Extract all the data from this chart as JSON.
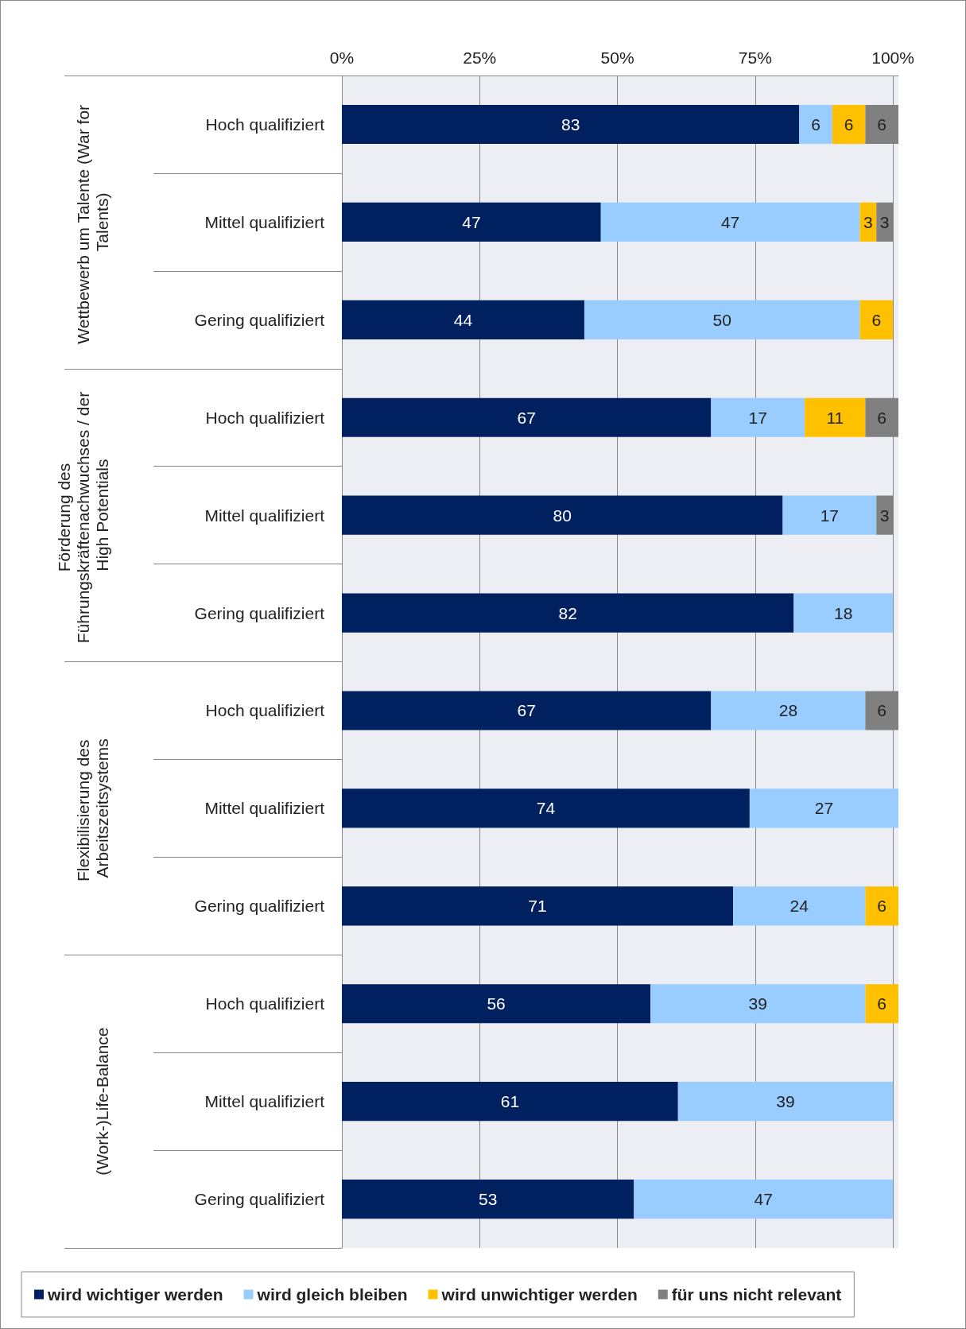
{
  "chart_data": {
    "type": "bar",
    "orientation": "horizontal",
    "stacked": true,
    "data_labels": true,
    "grid": "x",
    "legend": "bottom",
    "categories": [
      "Hoch qualifiziert",
      "Mittel qualifiziert",
      "Gering qualifiziert",
      "Hoch qualifiziert",
      "Mittel qualifiziert",
      "Gering qualifiziert",
      "Hoch qualifiziert",
      "Mittel qualifiziert",
      "Gering qualifiziert",
      "Hoch qualifiziert",
      "Mittel qualifiziert",
      "Gering qualifiziert"
    ],
    "annotations": [
      "Wettbewerb um Talente (War for Talents)",
      "Förderung des Führungskräftenachwuchses / der High Potentials",
      "Flexibilisierung des Arbeitszeitsystems",
      "(Work-)Life-Balance"
    ],
    "xlim": [
      0,
      101
    ],
    "xticks": [
      {
        "value": 0,
        "label": "0%"
      },
      {
        "value": 25,
        "label": "25%"
      },
      {
        "value": 50,
        "label": "50%"
      },
      {
        "value": 75,
        "label": "75%"
      },
      {
        "value": 100,
        "label": "100%"
      }
    ],
    "series": [
      {
        "name": "wird wichtiger werden",
        "color": "#002060",
        "values": [
          83,
          47,
          44,
          67,
          80,
          82,
          67,
          74,
          71,
          56,
          61,
          53
        ]
      },
      {
        "name": "wird gleich bleiben",
        "color": "#99ccff",
        "values": [
          6,
          47,
          50,
          17,
          17,
          18,
          28,
          27,
          24,
          39,
          39,
          47
        ]
      },
      {
        "name": "wird unwichtiger werden",
        "color": "#ffc000",
        "values": [
          6,
          3,
          6,
          11,
          null,
          null,
          null,
          null,
          6,
          6,
          null,
          null
        ]
      },
      {
        "name": "für uns nicht relevant",
        "color": "#808080",
        "values": [
          6,
          3,
          null,
          6,
          3,
          null,
          6,
          null,
          null,
          null,
          null,
          null
        ]
      }
    ]
  }
}
